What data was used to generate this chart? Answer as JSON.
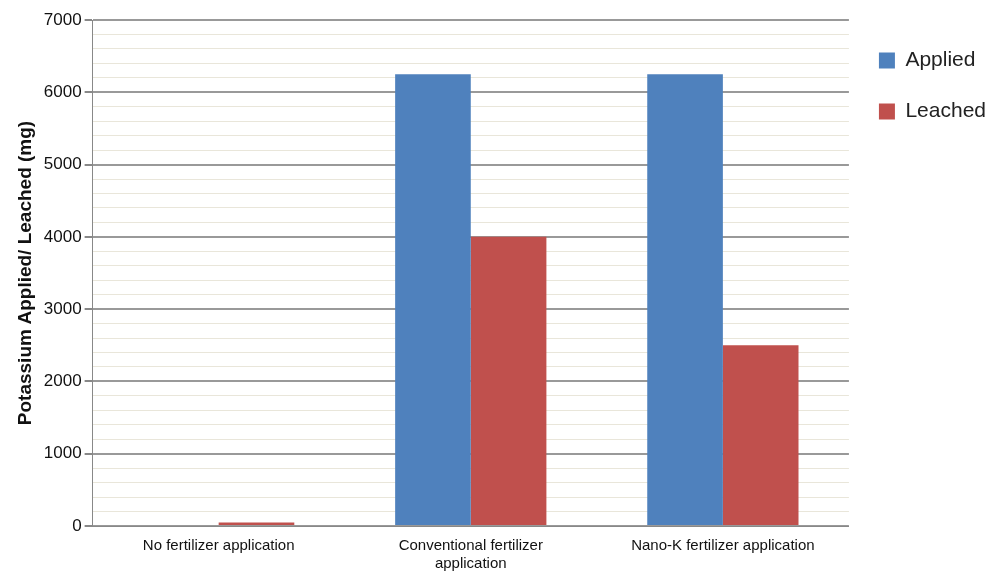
{
  "chart_data": {
    "type": "bar",
    "ylabel": "Potassium Applied/ Leached (mg)",
    "categories": [
      "No fertilizer application",
      "Conventional fertilizer application",
      "Nano-K fertilizer application"
    ],
    "series": [
      {
        "name": "Applied",
        "color": "#4f81bd",
        "values": [
          0,
          6250,
          6250
        ]
      },
      {
        "name": "Leached",
        "color": "#c0504d",
        "values": [
          50,
          4000,
          2500
        ]
      }
    ],
    "ylim": [
      0,
      7000
    ],
    "yticks": [
      0,
      {
        "value": 200,
        "label": null
      },
      {
        "value": 400,
        "label": null
      },
      {
        "value": 600,
        "label": null
      },
      {
        "value": 800,
        "label": null
      },
      1000,
      {
        "value": 1200,
        "label": null
      },
      {
        "value": 1400,
        "label": null
      },
      {
        "value": 1600,
        "label": null
      },
      {
        "value": 1800,
        "label": null
      },
      2000,
      {
        "value": 2200,
        "label": null
      },
      {
        "value": 2400,
        "label": null
      },
      {
        "value": 2600,
        "label": null
      },
      {
        "value": 2800,
        "label": null
      },
      3000,
      {
        "value": 3200,
        "label": null
      },
      {
        "value": 3400,
        "label": null
      },
      {
        "value": 3600,
        "label": null
      },
      {
        "value": 3800,
        "label": null
      },
      4000,
      {
        "value": 4200,
        "label": null
      },
      {
        "value": 4400,
        "label": null
      },
      {
        "value": 4600,
        "label": null
      },
      {
        "value": 4800,
        "label": null
      },
      5000,
      {
        "value": 5200,
        "label": null
      },
      {
        "value": 5400,
        "label": null
      },
      {
        "value": 5600,
        "label": null
      },
      {
        "value": 5800,
        "label": null
      },
      6000,
      {
        "value": 6200,
        "label": null
      },
      {
        "value": 6400,
        "label": null
      },
      {
        "value": 6600,
        "label": null
      },
      {
        "value": 6800,
        "label": null
      },
      7000
    ],
    "grid": "y",
    "legend": "right"
  }
}
